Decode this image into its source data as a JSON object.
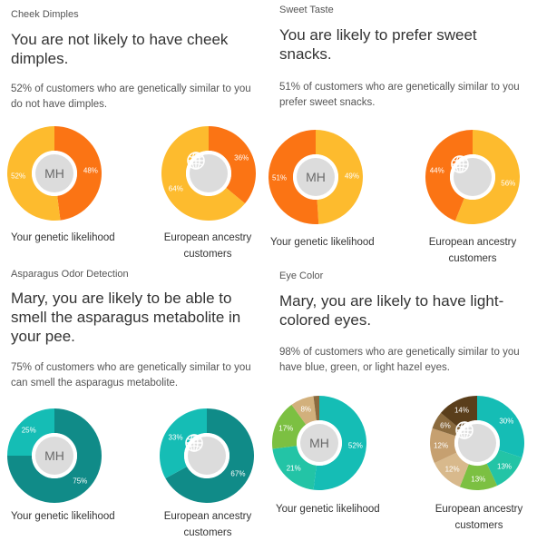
{
  "colors": {
    "orange_dark": "#fb7414",
    "orange_light": "#fdbb2e",
    "teal_dark": "#108b88",
    "teal_light": "#15bdb5",
    "teal_mid": "#23c4a6",
    "green_light": "#7cc042",
    "tan": "#d2b07c",
    "tan_light": "#d8b98c",
    "brown_dark": "#5a3e1b",
    "brown_mid": "#8a6a3e",
    "tan_mid": "#c6a070",
    "center_gray": "#dcdcdc"
  },
  "panels": [
    {
      "category": "Cheek Dimples",
      "headline": "You are not likely to have cheek dimples.",
      "description": "52% of customers who are genetically similar to you do not have dimples.",
      "charts": [
        {
          "center": "MH",
          "center_type": "initials",
          "caption": "Your genetic likelihood",
          "segments": [
            {
              "label": "48%",
              "value": 48,
              "color": "#fb7414"
            },
            {
              "label": "52%",
              "value": 52,
              "color": "#fdbb2e"
            }
          ]
        },
        {
          "center_type": "globe",
          "center_icon": "globe-icon",
          "caption": "European ancestry customers",
          "segments": [
            {
              "label": "36%",
              "value": 36,
              "color": "#fb7414"
            },
            {
              "label": "64%",
              "value": 64,
              "color": "#fdbb2e"
            }
          ]
        }
      ]
    },
    {
      "category": "Sweet Taste",
      "headline": "You are likely to prefer sweet snacks.",
      "description": "51% of customers who are genetically similar to you prefer sweet snacks.",
      "charts": [
        {
          "center": "MH",
          "center_type": "initials",
          "caption": "Your genetic likelihood",
          "segments": [
            {
              "label": "49%",
              "value": 49,
              "color": "#fdbb2e"
            },
            {
              "label": "51%",
              "value": 51,
              "color": "#fb7414"
            }
          ]
        },
        {
          "center_type": "globe",
          "center_icon": "globe-icon",
          "caption": "European ancestry customers",
          "segments": [
            {
              "label": "56%",
              "value": 56,
              "color": "#fdbb2e"
            },
            {
              "label": "44%",
              "value": 44,
              "color": "#fb7414"
            }
          ]
        }
      ]
    },
    {
      "category": "Asparagus Odor Detection",
      "headline": "Mary, you are likely to be able to smell the asparagus metabolite in your pee.",
      "description": "75% of customers who are genetically similar to you can smell the asparagus metabolite.",
      "charts": [
        {
          "center": "MH",
          "center_type": "initials",
          "caption": "Your genetic likelihood",
          "segments": [
            {
              "label": "75%",
              "value": 75,
              "color": "#108b88"
            },
            {
              "label": "25%",
              "value": 25,
              "color": "#15bdb5"
            }
          ]
        },
        {
          "center_type": "globe",
          "center_icon": "globe-icon",
          "caption": "European ancestry customers",
          "segments": [
            {
              "label": "67%",
              "value": 67,
              "color": "#108b88"
            },
            {
              "label": "33%",
              "value": 33,
              "color": "#15bdb5"
            }
          ]
        }
      ]
    },
    {
      "category": "Eye Color",
      "headline": "Mary, you are likely to have light-colored eyes.",
      "description": "98% of customers who are genetically similar to you have blue, green, or light hazel eyes.",
      "charts": [
        {
          "center": "MH",
          "center_type": "initials",
          "caption": "Your genetic likelihood",
          "segments": [
            {
              "label": "52%",
              "value": 52,
              "color": "#15bdb5"
            },
            {
              "label": "21%",
              "value": 21,
              "color": "#23c4a6"
            },
            {
              "label": "17%",
              "value": 17,
              "color": "#7cc042"
            },
            {
              "label": "8%",
              "value": 8,
              "color": "#d2b07c"
            },
            {
              "label": "",
              "value": 2,
              "color": "#8a6a3e"
            }
          ]
        },
        {
          "center_type": "globe",
          "center_icon": "globe-icon",
          "caption": "European ancestry customers",
          "segments": [
            {
              "label": "30%",
              "value": 30,
              "color": "#15bdb5"
            },
            {
              "label": "13%",
              "value": 13,
              "color": "#23c4a6"
            },
            {
              "label": "13%",
              "value": 13,
              "color": "#7cc042"
            },
            {
              "label": "12%",
              "value": 12,
              "color": "#d8b98c"
            },
            {
              "label": "12%",
              "value": 12,
              "color": "#c6a070"
            },
            {
              "label": "6%",
              "value": 6,
              "color": "#8a6a3e"
            },
            {
              "label": "14%",
              "value": 14,
              "color": "#5a3e1b"
            }
          ]
        }
      ]
    }
  ]
}
